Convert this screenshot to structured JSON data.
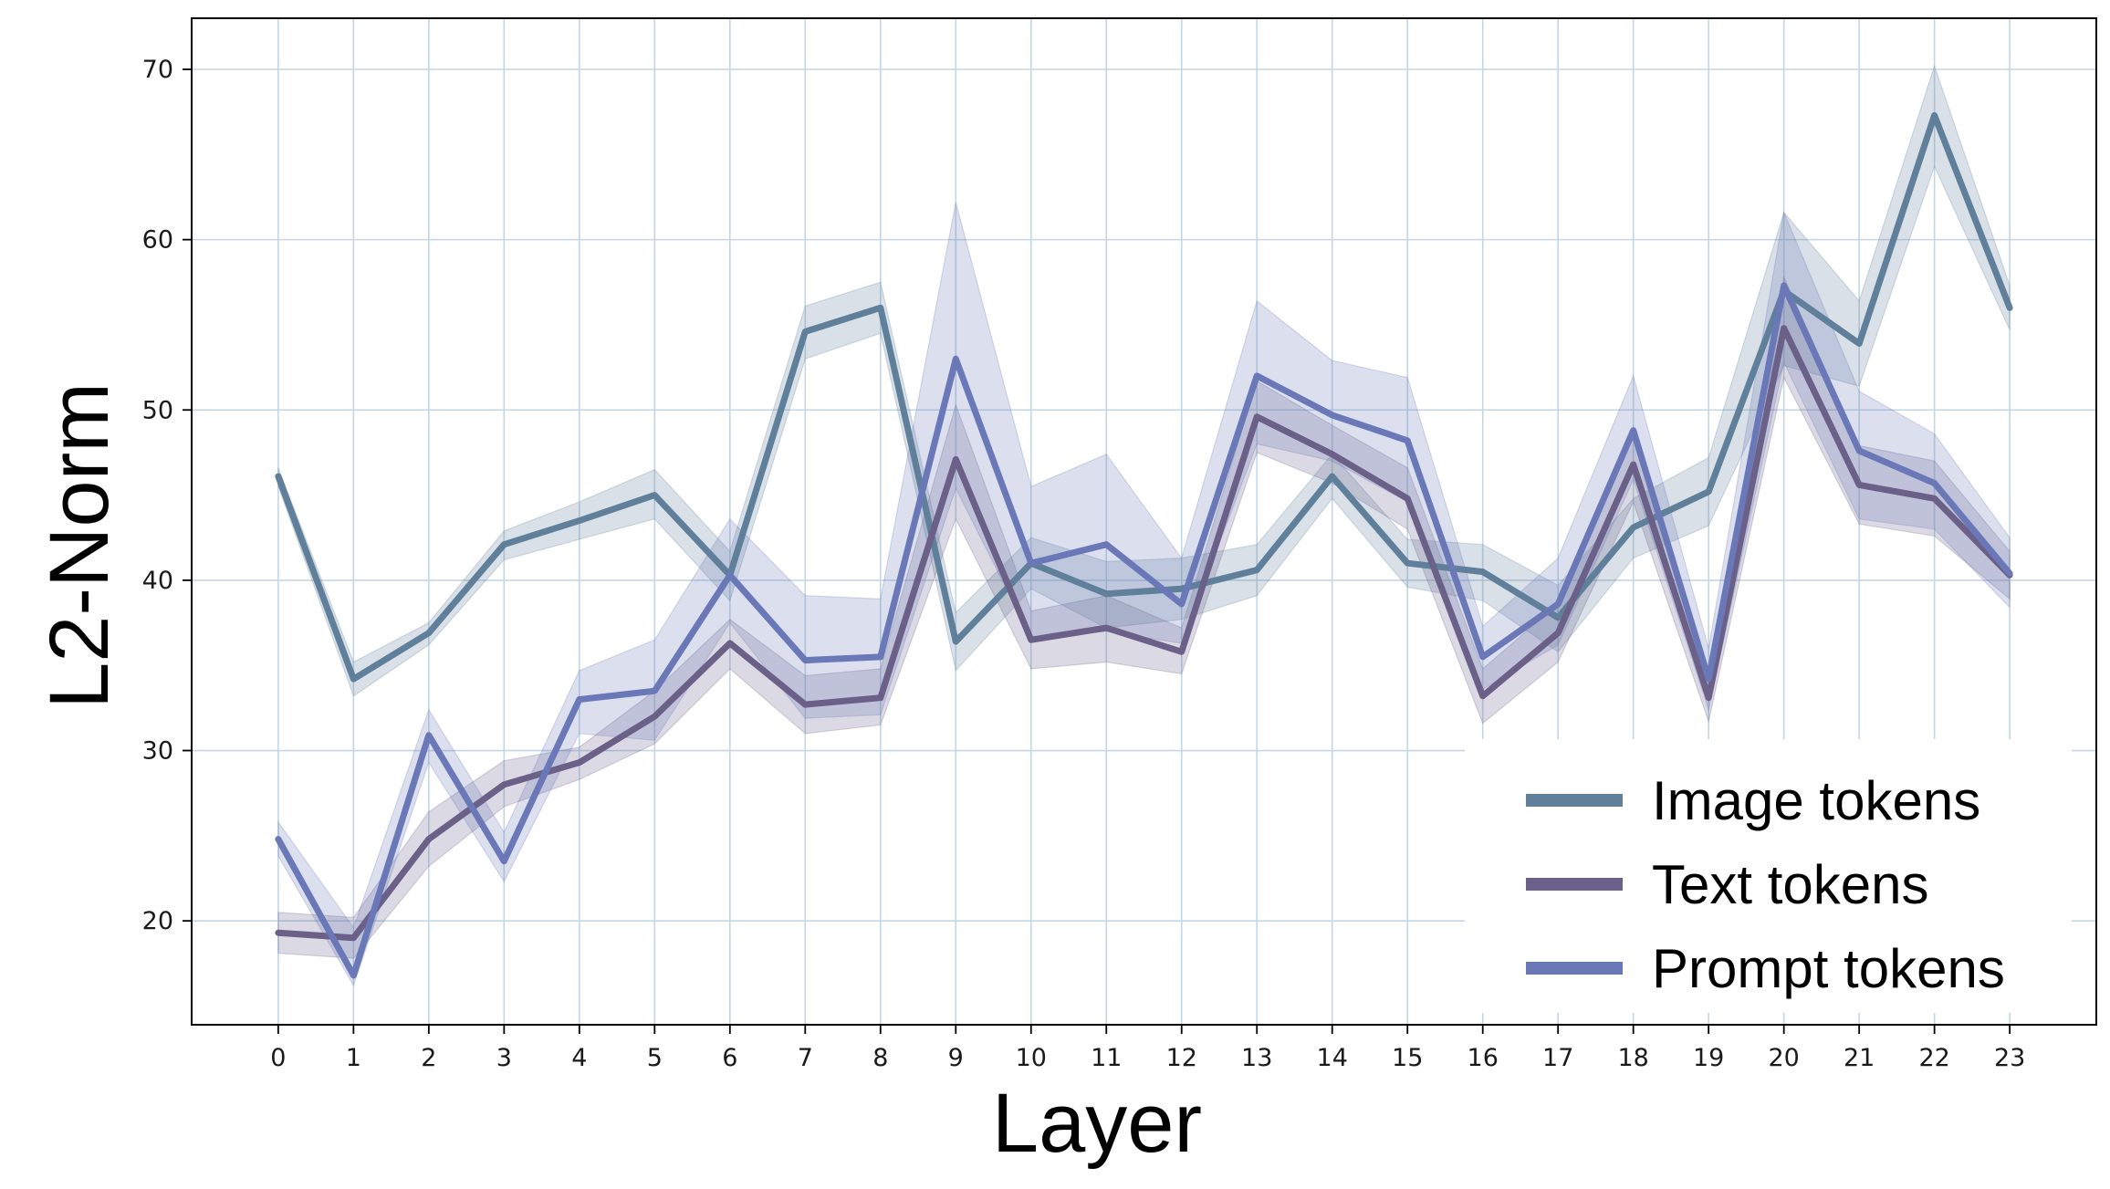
{
  "chart_data": {
    "type": "line",
    "title": "",
    "xlabel": "Layer",
    "ylabel": "L2-Norm",
    "x": [
      0,
      1,
      2,
      3,
      4,
      5,
      6,
      7,
      8,
      9,
      10,
      11,
      12,
      13,
      14,
      15,
      16,
      17,
      18,
      19,
      20,
      21,
      22,
      23
    ],
    "x_ticks": [
      "0",
      "1",
      "2",
      "3",
      "4",
      "5",
      "6",
      "7",
      "8",
      "9",
      "10",
      "11",
      "12",
      "13",
      "14",
      "15",
      "16",
      "17",
      "18",
      "19",
      "20",
      "21",
      "22",
      "23"
    ],
    "y_ticks": [
      "20",
      "30",
      "40",
      "50",
      "60",
      "70"
    ],
    "xlim": [
      -1.15,
      24.15
    ],
    "ylim": [
      13.9,
      73
    ],
    "grid": true,
    "legend_position": "lower-right",
    "series": [
      {
        "name": "Image tokens",
        "color": "#5f7f9a",
        "values": [
          46.1,
          34.2,
          36.9,
          42.1,
          43.5,
          45.0,
          40.3,
          54.6,
          56.0,
          36.4,
          41.0,
          39.2,
          39.5,
          40.6,
          46.1,
          41.0,
          40.5,
          37.8,
          43.1,
          45.2,
          57.0,
          53.9,
          67.3,
          56.0
        ],
        "lower": [
          45.5,
          33.2,
          36.2,
          41.2,
          42.4,
          43.6,
          38.8,
          53.0,
          54.5,
          34.7,
          39.5,
          37.2,
          37.7,
          39.1,
          44.8,
          39.6,
          38.8,
          35.8,
          41.3,
          43.2,
          52.6,
          51.4,
          64.3,
          54.7
        ],
        "upper": [
          46.6,
          35.2,
          37.5,
          42.9,
          44.6,
          46.5,
          41.7,
          56.1,
          57.5,
          38.1,
          42.5,
          41.1,
          41.3,
          42.1,
          47.4,
          42.4,
          42.1,
          39.7,
          44.8,
          47.2,
          61.6,
          56.4,
          70.2,
          57.3
        ]
      },
      {
        "name": "Text tokens",
        "color": "#6a6088",
        "values": [
          19.3,
          19.0,
          24.8,
          28.0,
          29.3,
          32.0,
          36.3,
          32.7,
          33.1,
          47.1,
          36.5,
          37.2,
          35.8,
          49.6,
          47.4,
          44.8,
          33.2,
          36.9,
          46.8,
          33.1,
          54.8,
          45.6,
          44.8,
          40.3
        ],
        "lower": [
          18.1,
          17.8,
          23.2,
          26.7,
          28.3,
          30.4,
          34.8,
          31.0,
          31.5,
          43.6,
          34.8,
          35.2,
          34.5,
          47.5,
          45.7,
          43.0,
          31.6,
          35.2,
          44.6,
          31.7,
          51.9,
          43.3,
          42.6,
          38.9
        ],
        "upper": [
          20.5,
          20.2,
          26.4,
          29.4,
          30.2,
          33.5,
          37.7,
          34.4,
          34.8,
          50.3,
          38.2,
          39.1,
          37.2,
          51.7,
          49.1,
          46.6,
          34.8,
          38.6,
          49.0,
          34.6,
          57.8,
          47.9,
          47.0,
          41.7
        ]
      },
      {
        "name": "Prompt tokens",
        "color": "#6a78b8",
        "values": [
          24.8,
          16.8,
          30.9,
          23.5,
          33.0,
          33.5,
          40.3,
          35.3,
          35.5,
          53.0,
          41.0,
          42.1,
          38.6,
          52.0,
          49.7,
          48.2,
          35.5,
          38.6,
          48.8,
          34.2,
          57.3,
          47.6,
          45.7,
          40.4
        ],
        "lower": [
          23.8,
          16.2,
          29.3,
          22.3,
          31.0,
          30.6,
          37.5,
          31.9,
          32.1,
          45.4,
          36.6,
          37.0,
          36.3,
          48.0,
          47.0,
          44.6,
          33.6,
          36.2,
          45.9,
          32.4,
          52.8,
          43.6,
          43.0,
          38.4
        ],
        "upper": [
          25.8,
          19.6,
          32.4,
          25.2,
          34.7,
          36.5,
          43.6,
          39.1,
          38.9,
          62.2,
          45.5,
          47.4,
          41.3,
          56.4,
          52.9,
          51.9,
          37.3,
          41.3,
          52.0,
          36.0,
          61.6,
          51.1,
          48.6,
          42.5
        ]
      }
    ]
  }
}
